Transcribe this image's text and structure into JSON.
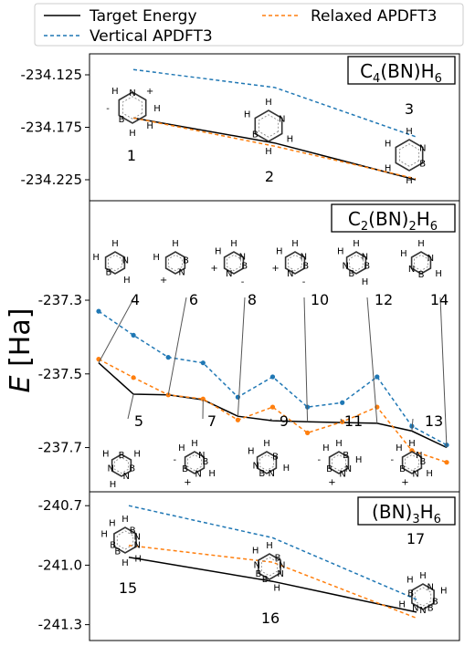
{
  "chart_data": {
    "type": "line",
    "ylabel": {
      "italic": "E",
      "rest": "[Ha]"
    },
    "legend": [
      {
        "name": "Target Energy",
        "color": "#000000",
        "dash": "solid"
      },
      {
        "name": "Vertical APDFT3",
        "color": "#1f77b4",
        "dash": "dashed"
      },
      {
        "name": "Relaxed APDFT3",
        "color": "#ff7f0e",
        "dash": "dashed"
      }
    ],
    "legend_position": "top",
    "panels": [
      {
        "title": {
          "main": "C",
          "sub1": "4",
          "mid": "(BN)H",
          "sub2": "6"
        },
        "ylim": [
          -234.245,
          -234.105
        ],
        "yticks": [
          -234.125,
          -234.175,
          -234.225
        ],
        "ytick_labels": [
          "-234.125",
          "-234.175",
          "-234.225"
        ],
        "x_positions": [
          1,
          2,
          3
        ],
        "molecule_numbers": [
          "1",
          "2",
          "3"
        ],
        "series": [
          {
            "name": "Target Energy",
            "values": [
              -234.166,
              -234.19,
              -234.225
            ]
          },
          {
            "name": "Vertical APDFT3",
            "values": [
              -234.12,
              -234.137,
              -234.184
            ],
            "markers": false
          },
          {
            "name": "Relaxed APDFT3",
            "values": [
              -234.166,
              -234.193,
              -234.224
            ]
          }
        ]
      },
      {
        "title": {
          "main": "C",
          "sub1": "2",
          "mid": "(BN)",
          "sub2a": "2",
          "mid2": "H",
          "sub2": "6"
        },
        "ylim": [
          -237.82,
          -237.03
        ],
        "yticks": [
          -237.3,
          -237.5,
          -237.7
        ],
        "ytick_labels": [
          "-237.3",
          "-237.5",
          "-237.7"
        ],
        "x_positions": [
          4,
          5,
          6,
          7,
          8,
          9,
          10,
          11,
          12,
          13,
          14
        ],
        "molecule_numbers": [
          "4",
          "5",
          "6",
          "7",
          "8",
          "9",
          "10",
          "11",
          "12",
          "13",
          "14"
        ],
        "series": [
          {
            "name": "Target Energy",
            "values": [
              -237.47,
              -237.555,
              -237.557,
              -237.57,
              -237.615,
              -237.627,
              -237.63,
              -237.632,
              -237.634,
              -237.655,
              -237.7
            ]
          },
          {
            "name": "Vertical APDFT3",
            "values": [
              -237.33,
              -237.395,
              -237.455,
              -237.47,
              -237.563,
              -237.508,
              -237.59,
              -237.578,
              -237.508,
              -237.642,
              -237.693
            ],
            "markers": true
          },
          {
            "name": "Relaxed APDFT3",
            "values": [
              -237.46,
              -237.51,
              -237.557,
              -237.568,
              -237.625,
              -237.59,
              -237.66,
              -237.63,
              -237.59,
              -237.708,
              -237.74
            ],
            "markers": true
          }
        ]
      },
      {
        "title": {
          "main": "(BN)",
          "sub1": "3",
          "mid": "H",
          "sub2": "6"
        },
        "ylim": [
          -241.38,
          -240.63
        ],
        "yticks": [
          -240.7,
          -241.0,
          -241.3
        ],
        "ytick_labels": [
          "-240.7",
          "-241.0",
          "-241.3"
        ],
        "x_positions": [
          15,
          16,
          17
        ],
        "molecule_numbers": [
          "15",
          "16",
          "17"
        ],
        "series": [
          {
            "name": "Target Energy",
            "values": [
              -240.96,
              -241.082,
              -241.237
            ]
          },
          {
            "name": "Vertical APDFT3",
            "values": [
              -240.7,
              -240.862,
              -241.173
            ],
            "markers": false
          },
          {
            "name": "Relaxed APDFT3",
            "values": [
              -240.9,
              -240.985,
              -241.267
            ]
          }
        ]
      }
    ]
  },
  "molecule_atoms": [
    {
      "id": "1",
      "atoms": [
        "N",
        "+",
        "H",
        "H",
        "H",
        "B",
        "-",
        "H"
      ]
    },
    {
      "id": "2",
      "atoms": [
        "H",
        "N",
        "H",
        "H",
        "B",
        "H"
      ]
    },
    {
      "id": "3",
      "atoms": [
        "H",
        "N",
        "B",
        "H",
        "H",
        "H"
      ]
    },
    {
      "id": "4",
      "atoms": [
        "H",
        "N",
        "H",
        "B",
        "H"
      ]
    },
    {
      "id": "5",
      "atoms": [
        "B",
        "H",
        "B",
        "N",
        "H",
        "N",
        "H"
      ]
    },
    {
      "id": "6",
      "atoms": [
        "H",
        "B",
        "N",
        "+",
        "H"
      ]
    },
    {
      "id": "7",
      "atoms": [
        "H",
        "N",
        "B",
        "H",
        "N",
        "+",
        "B",
        "-",
        "H"
      ]
    },
    {
      "id": "8",
      "atoms": [
        "H",
        "N",
        "B",
        "-",
        "N",
        "+",
        "H"
      ]
    },
    {
      "id": "9",
      "atoms": [
        "H",
        "B",
        "H",
        "N",
        "B",
        "N",
        "H"
      ]
    },
    {
      "id": "10",
      "atoms": [
        "H",
        "N",
        "B",
        "-",
        "N",
        "+",
        "H"
      ]
    },
    {
      "id": "11",
      "atoms": [
        "H",
        "B",
        "H",
        "N",
        "N",
        "+",
        "B",
        "-",
        "H"
      ]
    },
    {
      "id": "12",
      "atoms": [
        "H",
        "N",
        "B",
        "H",
        "B",
        "N",
        "H"
      ]
    },
    {
      "id": "13",
      "atoms": [
        "H",
        "N",
        "B",
        "H",
        "N",
        "+",
        "B",
        "-",
        "H"
      ]
    },
    {
      "id": "14",
      "atoms": [
        "H",
        "N",
        "H",
        "B",
        "N",
        "H"
      ]
    },
    {
      "id": "15",
      "atoms": [
        "H",
        "B",
        "N",
        "N",
        "H",
        "H",
        "B",
        "B",
        "H",
        "H"
      ]
    },
    {
      "id": "16",
      "atoms": [
        "H",
        "B",
        "N",
        "N",
        "H",
        "B",
        "B",
        "N",
        "H"
      ]
    },
    {
      "id": "17",
      "atoms": [
        "H",
        "N",
        "H",
        "B",
        "B",
        "N",
        "N",
        "H",
        "B",
        "H"
      ]
    }
  ]
}
